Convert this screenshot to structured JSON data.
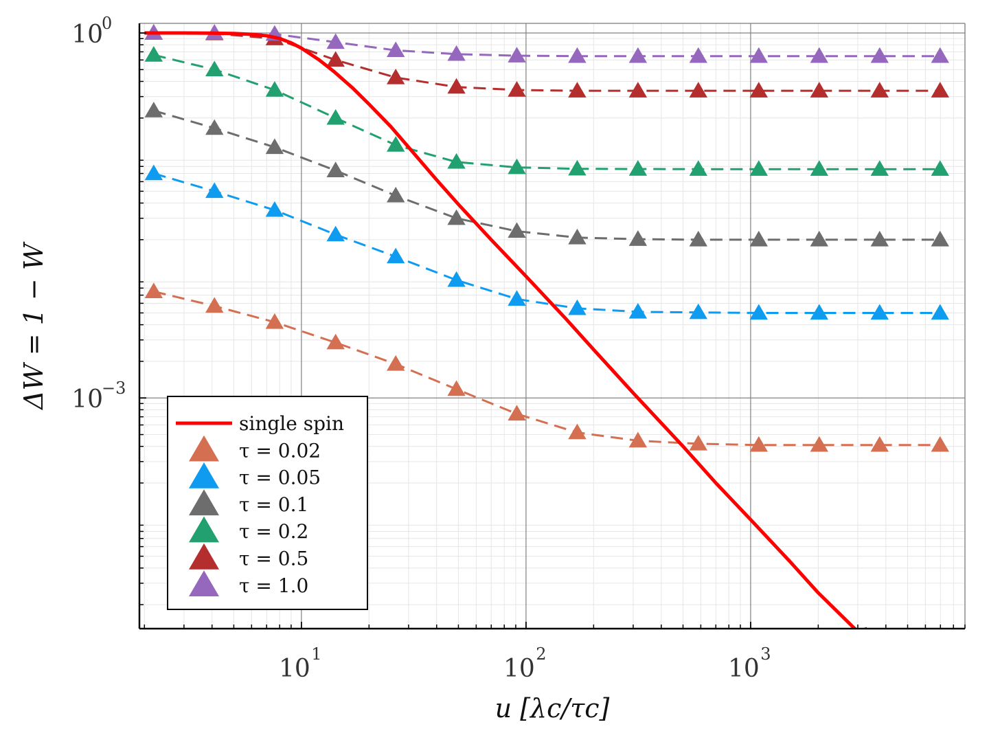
{
  "chart_data": {
    "type": "line",
    "title": "",
    "xscale": "log",
    "yscale": "log",
    "xlim": [
      1.9,
      9000
    ],
    "ylim": [
      1.27e-05,
      1.2
    ],
    "xlabel": "u [λc/τc]",
    "ylabel": "ΔW = 1 − W",
    "xticks": [
      {
        "base": "10",
        "exp": "1",
        "value": 10
      },
      {
        "base": "10",
        "exp": "2",
        "value": 100
      },
      {
        "base": "10",
        "exp": "3",
        "value": 1000
      }
    ],
    "yticks": [
      {
        "base": "10",
        "exp": "0",
        "value": 1
      },
      {
        "base": "10",
        "exp": "−3",
        "value": 0.001
      }
    ],
    "legend_position": "bottom-left",
    "curve": {
      "name": "single spin",
      "color": "#ff0000",
      "x": [
        2,
        2.5,
        3,
        3.5,
        4,
        5,
        6,
        7,
        8,
        9,
        10,
        12,
        14,
        17,
        20,
        25,
        30,
        40,
        50,
        70,
        100,
        150,
        200,
        300,
        500,
        700,
        1000,
        1500,
        2000,
        3000,
        3300
      ],
      "y": [
        1.0,
        1.0,
        1.0,
        0.999,
        0.997,
        0.99,
        0.975,
        0.95,
        0.9,
        0.83,
        0.75,
        0.6,
        0.48,
        0.35,
        0.26,
        0.17,
        0.115,
        0.062,
        0.039,
        0.02,
        0.01,
        0.0045,
        0.0025,
        0.0011,
        0.0004,
        0.0002,
        0.0001,
        4.5e-05,
        2.5e-05,
        1.2e-05,
        1.27e-05
      ]
    },
    "series": [
      {
        "name": "τ = 0.02",
        "color": "#d56f52",
        "x": [
          2.2,
          4.1,
          7.6,
          14.2,
          26.3,
          49.0,
          91.0,
          169,
          315,
          585,
          1087,
          2020,
          3753,
          6974
        ],
        "y": [
          0.0075,
          0.0057,
          0.0042,
          0.00285,
          0.0019,
          0.00118,
          0.00074,
          0.00052,
          0.000445,
          0.00042,
          0.00041,
          0.00041,
          0.00041,
          0.00041
        ]
      },
      {
        "name": "τ = 0.05",
        "color": "#0e9bf0",
        "x": [
          2.2,
          4.1,
          7.6,
          14.2,
          26.3,
          49.0,
          91.0,
          169,
          315,
          585,
          1087,
          2020,
          3753,
          6974
        ],
        "y": [
          0.07,
          0.05,
          0.035,
          0.022,
          0.0145,
          0.0093,
          0.0065,
          0.00545,
          0.0051,
          0.00505,
          0.005,
          0.005,
          0.005,
          0.005
        ]
      },
      {
        "name": "τ = 0.1",
        "color": "#6d6d6d",
        "x": [
          2.2,
          4.1,
          7.6,
          14.2,
          26.3,
          49.0,
          91.0,
          169,
          315,
          585,
          1087,
          2020,
          3753,
          6974
        ],
        "y": [
          0.23,
          0.165,
          0.115,
          0.074,
          0.046,
          0.03,
          0.0235,
          0.0208,
          0.0202,
          0.02,
          0.02,
          0.02,
          0.02,
          0.02
        ]
      },
      {
        "name": "τ = 0.2",
        "color": "#22a06f",
        "x": [
          2.2,
          4.1,
          7.6,
          14.2,
          26.3,
          49.0,
          91.0,
          169,
          315,
          585,
          1087,
          2020,
          3753,
          6974
        ],
        "y": [
          0.66,
          0.5,
          0.34,
          0.2,
          0.12,
          0.087,
          0.0785,
          0.0765,
          0.0762,
          0.076,
          0.076,
          0.076,
          0.076,
          0.076
        ]
      },
      {
        "name": "τ = 0.5",
        "color": "#b52e2e",
        "x": [
          2.2,
          4.1,
          7.6,
          14.2,
          26.3,
          49.0,
          91.0,
          169,
          315,
          585,
          1087,
          2020,
          3753,
          6974
        ],
        "y": [
          1.0,
          0.99,
          0.9,
          0.6,
          0.43,
          0.36,
          0.34,
          0.335,
          0.335,
          0.335,
          0.335,
          0.335,
          0.335,
          0.335
        ]
      },
      {
        "name": "τ = 1.0",
        "color": "#9567bd",
        "x": [
          2.2,
          4.1,
          7.6,
          14.2,
          26.3,
          49.0,
          91.0,
          169,
          315,
          585,
          1087,
          2020,
          3753,
          6974
        ],
        "y": [
          1.0,
          1.0,
          0.98,
          0.84,
          0.72,
          0.67,
          0.65,
          0.645,
          0.645,
          0.645,
          0.645,
          0.645,
          0.645,
          0.645
        ]
      }
    ],
    "colors": {
      "frame": "#000000",
      "grid_major": "#808080",
      "grid_minor": "#e6e6e6"
    }
  }
}
